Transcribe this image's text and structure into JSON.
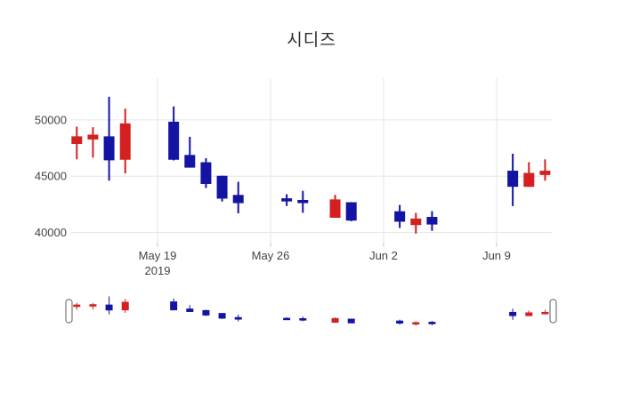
{
  "title": "시디즈",
  "colors": {
    "background": "#ffffff",
    "increasing": "#d42020",
    "decreasing": "#1414a4",
    "grid": "#e6e6e6",
    "tick_mark": "#c4c4c4",
    "tick_text": "#444444",
    "title_text": "#2b2b2b",
    "slider_handle_fill": "#ffffff",
    "slider_handle_border": "#777777"
  },
  "chart_data": {
    "type": "candlestick",
    "title": "시디즈",
    "xlabel": "",
    "ylabel": "",
    "grid": true,
    "rangeslider": true,
    "ylim": [
      39100,
      53700
    ],
    "yticks": [
      40000,
      45000,
      50000
    ],
    "xticks": [
      {
        "label": "May 19",
        "sublabel": "2019",
        "date": "2019-05-19"
      },
      {
        "label": "May 26",
        "sublabel": "",
        "date": "2019-05-26"
      },
      {
        "label": "Jun 2",
        "sublabel": "",
        "date": "2019-06-02"
      },
      {
        "label": "Jun 9",
        "sublabel": "",
        "date": "2019-06-09"
      }
    ],
    "ohlc": [
      {
        "date": "2019-05-14",
        "open": 47900,
        "high": 49400,
        "low": 46500,
        "close": 48500
      },
      {
        "date": "2019-05-15",
        "open": 48300,
        "high": 49350,
        "low": 46650,
        "close": 48650
      },
      {
        "date": "2019-05-16",
        "open": 48500,
        "high": 52050,
        "low": 44600,
        "close": 46450
      },
      {
        "date": "2019-05-17",
        "open": 46500,
        "high": 51000,
        "low": 45250,
        "close": 49650
      },
      {
        "date": "2019-05-20",
        "open": 49800,
        "high": 51200,
        "low": 46400,
        "close": 46500
      },
      {
        "date": "2019-05-21",
        "open": 46850,
        "high": 48500,
        "low": 45800,
        "close": 45800
      },
      {
        "date": "2019-05-22",
        "open": 46200,
        "high": 46600,
        "low": 43950,
        "close": 44350
      },
      {
        "date": "2019-05-23",
        "open": 45000,
        "high": 45050,
        "low": 42750,
        "close": 43050
      },
      {
        "date": "2019-05-24",
        "open": 43300,
        "high": 44500,
        "low": 41700,
        "close": 42650
      },
      {
        "date": "2019-05-27",
        "open": 43000,
        "high": 43400,
        "low": 42350,
        "close": 42800
      },
      {
        "date": "2019-05-28",
        "open": 42850,
        "high": 43700,
        "low": 41750,
        "close": 42650
      },
      {
        "date": "2019-05-30",
        "open": 41350,
        "high": 43350,
        "low": 41300,
        "close": 42900
      },
      {
        "date": "2019-05-31",
        "open": 42650,
        "high": 42700,
        "low": 41000,
        "close": 41100
      },
      {
        "date": "2019-06-03",
        "open": 41850,
        "high": 42450,
        "low": 40400,
        "close": 41000
      },
      {
        "date": "2019-06-04",
        "open": 40700,
        "high": 41750,
        "low": 39900,
        "close": 41200
      },
      {
        "date": "2019-06-05",
        "open": 41350,
        "high": 41900,
        "low": 40150,
        "close": 40750
      },
      {
        "date": "2019-06-10",
        "open": 45450,
        "high": 47000,
        "low": 42350,
        "close": 44100
      },
      {
        "date": "2019-06-11",
        "open": 44100,
        "high": 46250,
        "low": 44050,
        "close": 45250
      },
      {
        "date": "2019-06-12",
        "open": 45150,
        "high": 46500,
        "low": 44600,
        "close": 45450
      }
    ]
  }
}
